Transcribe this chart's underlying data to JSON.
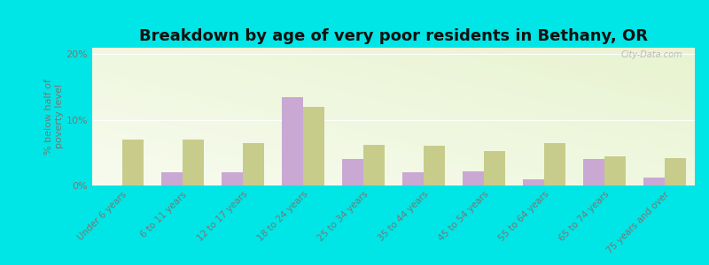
{
  "title": "Breakdown by age of very poor residents in Bethany, OR",
  "ylabel": "% below half of\npoverty level",
  "categories": [
    "Under 6 years",
    "6 to 11 years",
    "12 to 17 years",
    "18 to 24 years",
    "25 to 34 years",
    "35 to 44 years",
    "45 to 54 years",
    "55 to 64 years",
    "65 to 74 years",
    "75 years and over"
  ],
  "bethany": [
    0,
    2.0,
    2.0,
    13.5,
    4.0,
    2.0,
    2.2,
    1.0,
    4.0,
    1.2
  ],
  "oregon": [
    7.0,
    7.0,
    6.5,
    12.0,
    6.2,
    6.0,
    5.2,
    6.5,
    4.5,
    4.2
  ],
  "bethany_color": "#c9a8d4",
  "oregon_color": "#c8cc8a",
  "background_outer": "#00e5e5",
  "ylim": [
    0,
    21
  ],
  "yticks": [
    0,
    10,
    20
  ],
  "ytick_labels": [
    "0%",
    "10%",
    "20%"
  ],
  "bar_width": 0.35,
  "title_fontsize": 13,
  "label_fontsize": 8,
  "watermark": "City-Data.com"
}
